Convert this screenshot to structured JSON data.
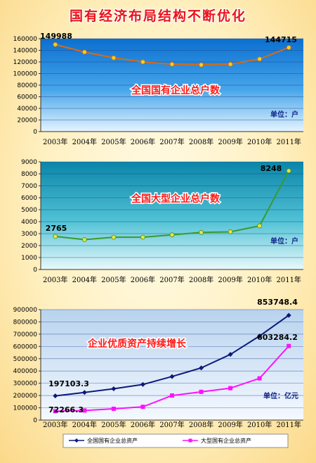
{
  "page_title": "国有经济布局结构不断优化",
  "chart_data": [
    {
      "type": "line",
      "title": "全国国有企业总户数",
      "unit_label": "单位：户",
      "categories": [
        "2003年",
        "2004年",
        "2005年",
        "2006年",
        "2007年",
        "2008年",
        "2009年",
        "2010年",
        "2011年"
      ],
      "series": [
        {
          "values": [
            149988,
            137000,
            127000,
            120000,
            116000,
            115000,
            116000,
            125000,
            144715
          ],
          "color": "#d46b16",
          "marker": "#f0d020"
        }
      ],
      "data_labels": [
        {
          "index": 0,
          "text": "149988"
        },
        {
          "index": 8,
          "text": "144715"
        }
      ],
      "ylim": [
        0,
        160000
      ],
      "yticks": [
        "0",
        "20000",
        "40000",
        "60000",
        "80000",
        "100000",
        "120000",
        "140000",
        "160000"
      ],
      "grid": true
    },
    {
      "type": "line",
      "title": "全国大型企业总户数",
      "unit_label": "单位：户",
      "categories": [
        "2003年",
        "2004年",
        "2005年",
        "2006年",
        "2007年",
        "2008年",
        "2009年",
        "2010年",
        "2011年"
      ],
      "series": [
        {
          "values": [
            2765,
            2500,
            2700,
            2700,
            2900,
            3100,
            3150,
            3650,
            8248
          ],
          "color": "#3a9a2a",
          "marker": "#f0e040"
        }
      ],
      "data_labels": [
        {
          "index": 0,
          "text": "2765"
        },
        {
          "index": 8,
          "text": "8248"
        }
      ],
      "ylim": [
        0,
        9000
      ],
      "yticks": [
        "0",
        "1000",
        "2000",
        "3000",
        "4000",
        "5000",
        "6000",
        "7000",
        "8000",
        "9000"
      ],
      "grid": true
    },
    {
      "type": "line",
      "title": "企业优质资产持续增长",
      "unit_label": "单位：亿元",
      "categories": [
        "2003年",
        "2004年",
        "2005年",
        "2006年",
        "2007年",
        "2008年",
        "2009年",
        "2010年",
        "2011年"
      ],
      "series": [
        {
          "name": "全国国有企业总资产",
          "values": [
            197103.3,
            225000,
            255000,
            290000,
            355000,
            425000,
            535000,
            685000,
            853748.4
          ],
          "color": "#0c1a7a",
          "marker": "diamond"
        },
        {
          "name": "大型国有企业总资产",
          "values": [
            72266.3,
            78000,
            92000,
            108000,
            200000,
            230000,
            260000,
            340000,
            603284.2
          ],
          "color": "#ff10ff",
          "marker": "square"
        }
      ],
      "data_labels": [
        {
          "series": 0,
          "index": 0,
          "text": "197103.3"
        },
        {
          "series": 0,
          "index": 8,
          "text": "853748.4"
        },
        {
          "series": 1,
          "index": 0,
          "text": "72266.3"
        },
        {
          "series": 1,
          "index": 8,
          "text": "603284.2"
        }
      ],
      "ylim": [
        0,
        900000
      ],
      "yticks": [
        "0",
        "100000",
        "200000",
        "300000",
        "400000",
        "500000",
        "600000",
        "700000",
        "800000",
        "900000"
      ],
      "grid": true,
      "legend": "bottom"
    }
  ]
}
